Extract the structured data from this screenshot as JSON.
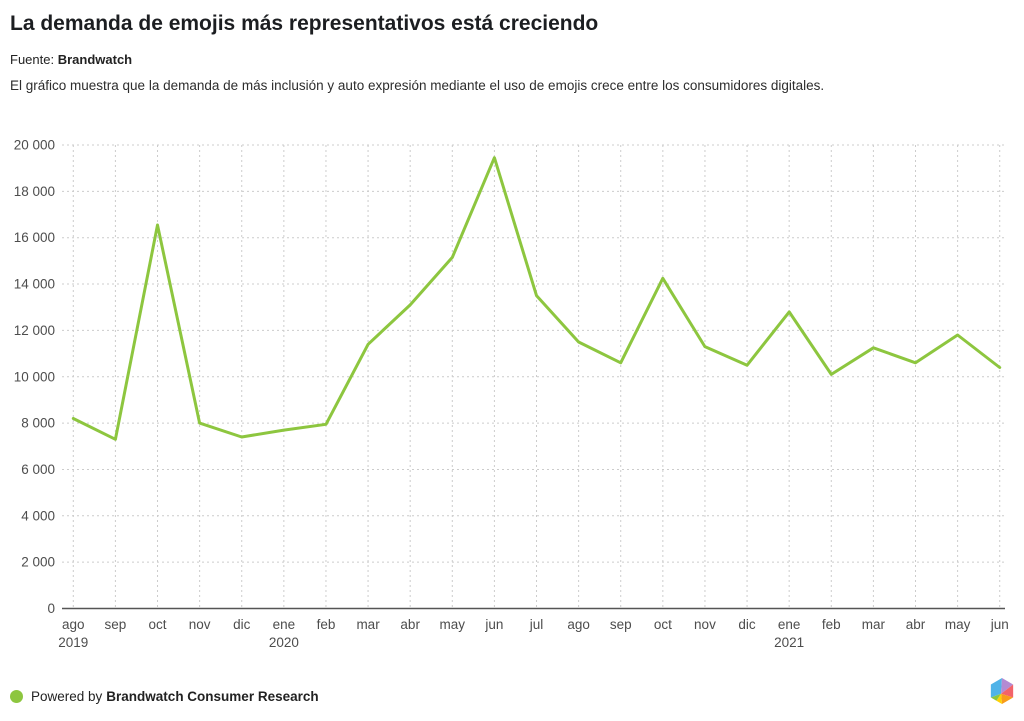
{
  "header": {
    "title": "La demanda de emojis más representativos está creciendo",
    "source_label": "Fuente:",
    "source_name": "Brandwatch",
    "description": "El gráfico muestra que la demanda de más inclusión y auto expresión mediante el uso de emojis crece entre los consumidores digitales."
  },
  "chart_data": {
    "type": "line",
    "title": "La demanda de emojis más representativos está creciendo",
    "xlabel": "",
    "ylabel": "",
    "ylim": [
      0,
      20000
    ],
    "y_step": 2000,
    "grid": "dashed",
    "legend": "none",
    "line_color": "#8dc63f",
    "grid_color": "#cccccc",
    "axis_color": "#555555",
    "tick_color": "#4d4d4d",
    "categories": [
      "ago 2019",
      "sep 2019",
      "oct 2019",
      "nov 2019",
      "dic 2019",
      "ene 2020",
      "feb 2020",
      "mar 2020",
      "abr 2020",
      "may 2020",
      "jun 2020",
      "jul 2020",
      "ago 2020",
      "sep 2020",
      "oct 2020",
      "nov 2020",
      "dic 2020",
      "ene 2021",
      "feb 2021",
      "mar 2021",
      "abr 2021",
      "may 2021",
      "jun 2021"
    ],
    "values": [
      8200,
      7300,
      16550,
      8000,
      7400,
      7700,
      7950,
      11400,
      13100,
      15150,
      19450,
      13500,
      11500,
      10600,
      14250,
      11300,
      10500,
      12800,
      10100,
      11250,
      10600,
      11800,
      10400
    ],
    "y_tick_labels": [
      "0",
      "2 000",
      "4 000",
      "6 000",
      "8 000",
      "10 000",
      "12 000",
      "14 000",
      "16 000",
      "18 000",
      "20 000"
    ],
    "x_tick_labels": [
      {
        "month": "ago",
        "year": "2019"
      },
      {
        "month": "sep"
      },
      {
        "month": "oct"
      },
      {
        "month": "nov"
      },
      {
        "month": "dic"
      },
      {
        "month": "ene",
        "year": "2020"
      },
      {
        "month": "feb"
      },
      {
        "month": "mar"
      },
      {
        "month": "abr"
      },
      {
        "month": "may"
      },
      {
        "month": "jun"
      },
      {
        "month": "jul"
      },
      {
        "month": "ago"
      },
      {
        "month": "sep"
      },
      {
        "month": "oct"
      },
      {
        "month": "nov"
      },
      {
        "month": "dic"
      },
      {
        "month": "ene",
        "year": "2021"
      },
      {
        "month": "feb"
      },
      {
        "month": "mar"
      },
      {
        "month": "abr"
      },
      {
        "month": "may"
      },
      {
        "month": "jun"
      }
    ]
  },
  "footer": {
    "powered_by": "Powered by",
    "brand": "Brandwatch Consumer Research",
    "dot_color": "#8dc63f",
    "logo_colors": {
      "blue": "#4fb3e8",
      "purple": "#b48ad2",
      "red": "#f2636a",
      "orange": "#f89c1c",
      "yellow": "#ffd105",
      "green": "#8dc63f"
    }
  }
}
